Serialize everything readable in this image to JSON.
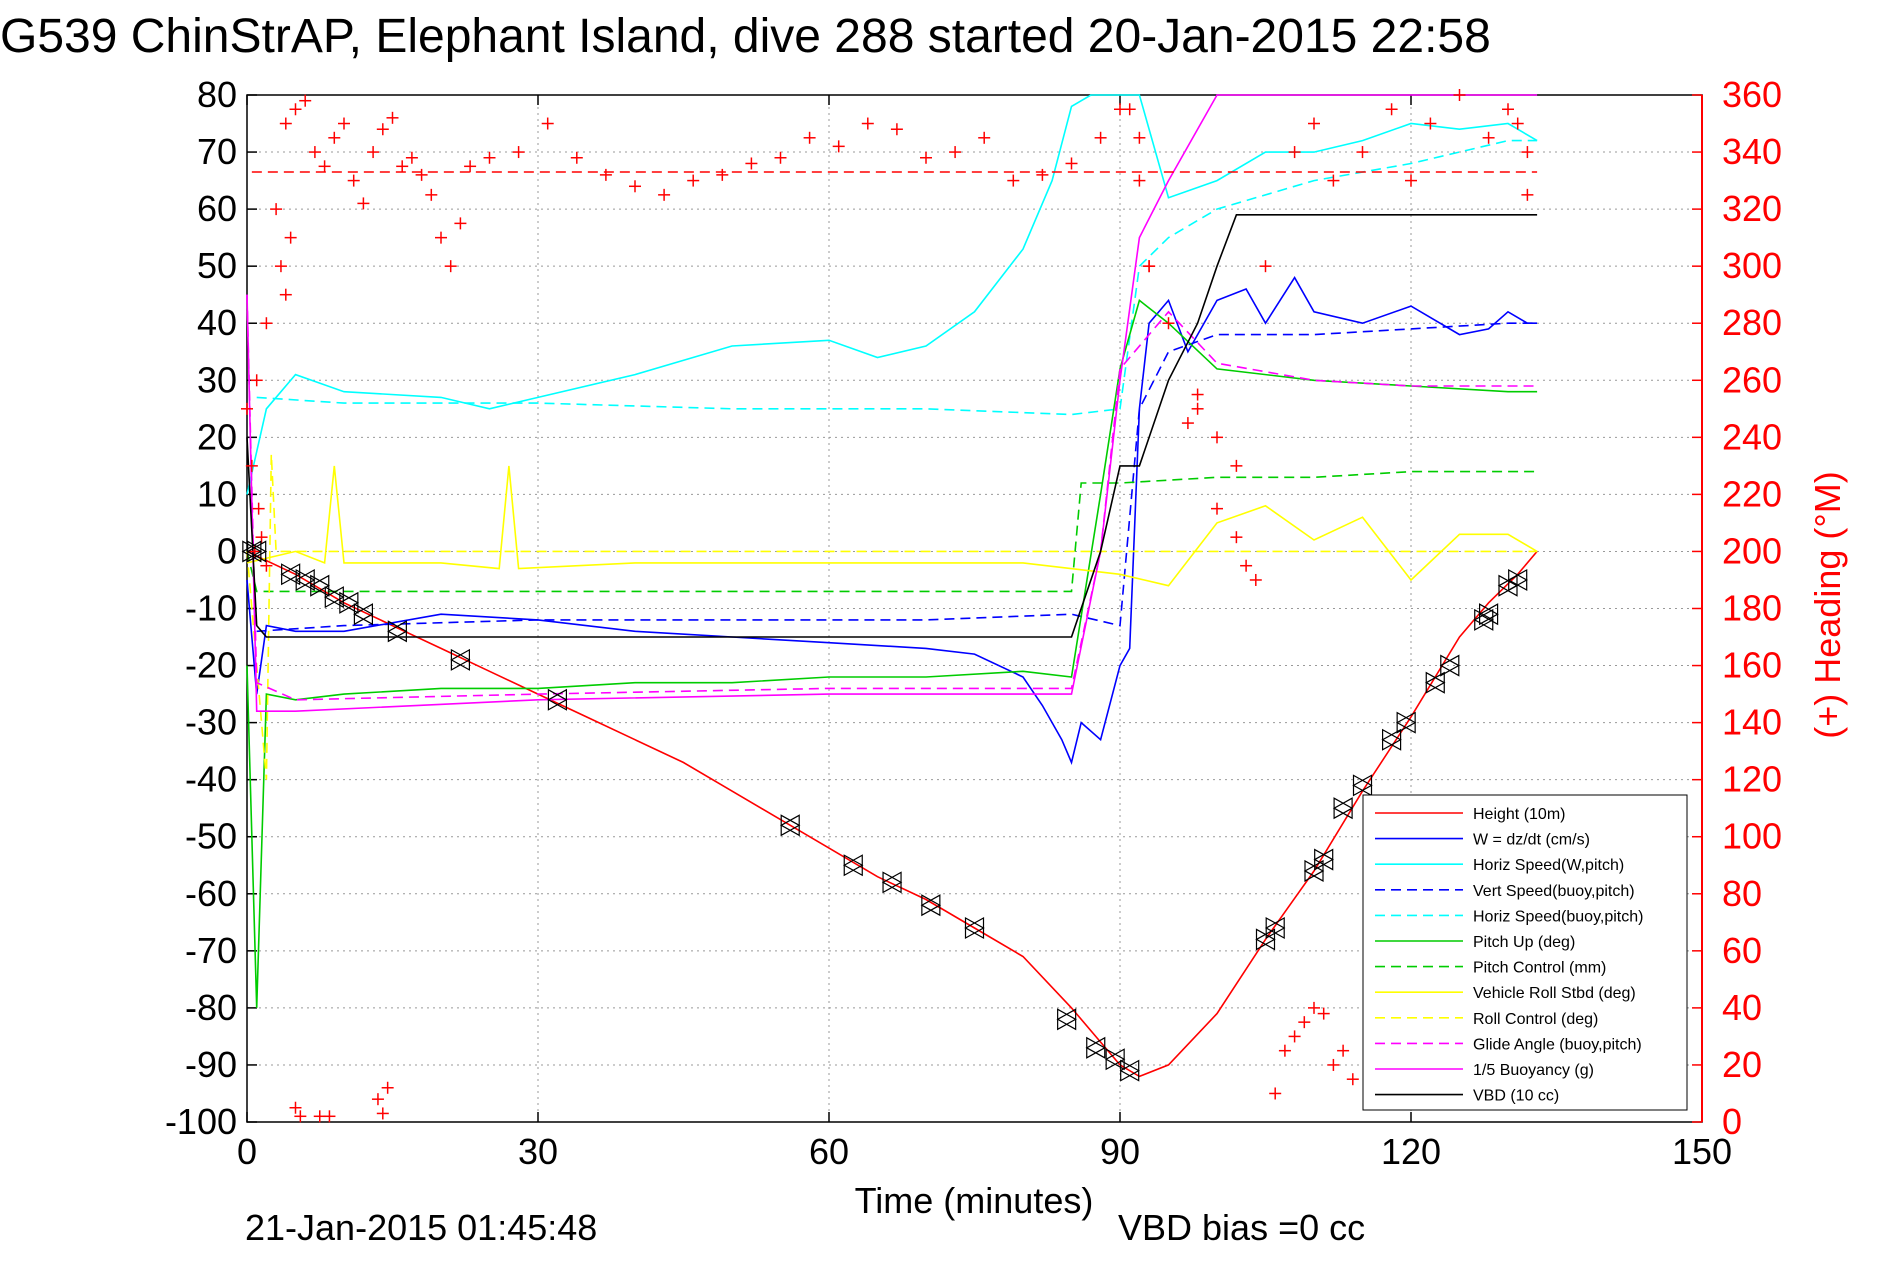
{
  "chart_data": {
    "type": "line",
    "title": "G539 ChinStrAP, Elephant Island, dive 288 started 20-Jan-2015 22:58",
    "xlabel": "Time (minutes)",
    "ylabel": "",
    "y2label": "(+) Heading (°M)",
    "xlim": [
      0,
      150
    ],
    "ylim": [
      -100,
      80
    ],
    "y2lim": [
      0,
      360
    ],
    "xticks": [
      "0",
      "30",
      "60",
      "90",
      "120",
      "150"
    ],
    "yticks": [
      "-100",
      "-90",
      "-80",
      "-70",
      "-60",
      "-50",
      "-40",
      "-30",
      "-20",
      "-10",
      "0",
      "10",
      "20",
      "30",
      "40",
      "50",
      "60",
      "70",
      "80"
    ],
    "y2ticks": [
      "0",
      "20",
      "40",
      "60",
      "80",
      "100",
      "120",
      "140",
      "160",
      "180",
      "200",
      "220",
      "240",
      "260",
      "280",
      "300",
      "320",
      "340",
      "360"
    ],
    "grid": true,
    "legend_position": "bottom-right",
    "footer_left": "21-Jan-2015 01:45:48",
    "footer_right": "VBD bias =0 cc",
    "heading_target_deg": 333,
    "series": [
      {
        "name": "Height (10m)",
        "color": "#ff0000",
        "dash": "solid",
        "x": [
          0,
          5,
          10,
          15,
          20,
          25,
          30,
          35,
          40,
          45,
          50,
          55,
          60,
          65,
          70,
          75,
          80,
          85,
          88,
          90,
          92,
          95,
          100,
          105,
          110,
          115,
          120,
          125,
          128,
          131,
          133
        ],
        "y": [
          0,
          -4,
          -9,
          -13,
          -17,
          -21,
          -25,
          -29,
          -33,
          -37,
          -42,
          -47,
          -52,
          -57,
          -61,
          -66,
          -71,
          -80,
          -86,
          -90,
          -92,
          -90,
          -81,
          -68,
          -56,
          -42,
          -29,
          -15,
          -9,
          -4,
          0
        ]
      },
      {
        "name": "W = dz/dt (cm/s)",
        "color": "#0000ff",
        "dash": "solid",
        "x": [
          0,
          1,
          2,
          5,
          10,
          20,
          30,
          40,
          50,
          60,
          70,
          75,
          80,
          82,
          84,
          85,
          86,
          88,
          90,
          91,
          92,
          93,
          95,
          97,
          100,
          103,
          105,
          108,
          110,
          115,
          120,
          125,
          128,
          130,
          132,
          133
        ],
        "y": [
          -5,
          -25,
          -13,
          -14,
          -14,
          -11,
          -12,
          -14,
          -15,
          -16,
          -17,
          -18,
          -22,
          -27,
          -33,
          -37,
          -30,
          -33,
          -20,
          -17,
          25,
          40,
          44,
          35,
          44,
          46,
          40,
          48,
          42,
          40,
          43,
          38,
          39,
          42,
          40,
          40
        ]
      },
      {
        "name": "Horiz Speed(W,pitch)",
        "color": "#00ffff",
        "dash": "solid",
        "x": [
          0,
          2,
          5,
          10,
          20,
          25,
          30,
          40,
          50,
          60,
          65,
          70,
          75,
          80,
          83,
          85,
          87,
          88,
          89,
          90,
          91,
          92,
          95,
          100,
          105,
          110,
          115,
          120,
          125,
          130,
          133
        ],
        "y": [
          10,
          25,
          31,
          28,
          27,
          25,
          27,
          31,
          36,
          37,
          34,
          36,
          42,
          53,
          65,
          78,
          80,
          80,
          80,
          80,
          80,
          80,
          62,
          65,
          70,
          70,
          72,
          75,
          74,
          75,
          72
        ]
      },
      {
        "name": "Vert Speed(buoy,pitch)",
        "color": "#0000ff",
        "dash": "dashed",
        "x": [
          1,
          10,
          30,
          50,
          70,
          85,
          90,
          92,
          95,
          100,
          110,
          120,
          130,
          133
        ],
        "y": [
          -14,
          -13,
          -12,
          -12,
          -12,
          -11,
          -13,
          25,
          35,
          38,
          38,
          39,
          40,
          40
        ]
      },
      {
        "name": "Horiz Speed(buoy,pitch)",
        "color": "#00ffff",
        "dash": "dashed",
        "x": [
          1,
          10,
          30,
          50,
          70,
          85,
          90,
          92,
          95,
          100,
          110,
          120,
          130,
          133
        ],
        "y": [
          27,
          26,
          26,
          25,
          25,
          24,
          25,
          50,
          55,
          60,
          65,
          68,
          72,
          72
        ]
      },
      {
        "name": "Pitch Up (deg)",
        "color": "#00cc00",
        "dash": "solid",
        "x": [
          0,
          1,
          2,
          5,
          10,
          20,
          30,
          40,
          50,
          60,
          70,
          80,
          85,
          88,
          90,
          92,
          95,
          100,
          110,
          120,
          130,
          133
        ],
        "y": [
          -20,
          -80,
          -25,
          -26,
          -25,
          -24,
          -24,
          -23,
          -23,
          -22,
          -22,
          -21,
          -22,
          10,
          32,
          44,
          40,
          32,
          30,
          29,
          28,
          28
        ]
      },
      {
        "name": "Pitch Control (mm)",
        "color": "#00cc00",
        "dash": "dashed",
        "x": [
          0,
          1,
          5,
          30,
          60,
          85,
          86,
          90,
          100,
          110,
          120,
          133
        ],
        "y": [
          0,
          -7,
          -7,
          -7,
          -7,
          -7,
          12,
          12,
          13,
          13,
          14,
          14
        ]
      },
      {
        "name": "Vehicle Roll Stbd (deg)",
        "color": "#ffff00",
        "dash": "solid",
        "x": [
          0,
          5,
          8,
          9,
          10,
          20,
          26,
          27,
          28,
          40,
          60,
          80,
          90,
          95,
          100,
          105,
          110,
          115,
          120,
          125,
          130,
          133
        ],
        "y": [
          -2,
          0,
          -2,
          15,
          -2,
          -2,
          -3,
          15,
          -3,
          -2,
          -2,
          -2,
          -4,
          -6,
          5,
          8,
          2,
          6,
          -5,
          3,
          3,
          0
        ]
      },
      {
        "name": "Roll Control (deg)",
        "color": "#ffff00",
        "dash": "dashed",
        "x": [
          0,
          2,
          2.5,
          3,
          30,
          60,
          85,
          88,
          90,
          120,
          133
        ],
        "y": [
          0,
          -40,
          17,
          0,
          0,
          0,
          0,
          0,
          0,
          0,
          0
        ]
      },
      {
        "name": "Glide Angle (buoy,pitch)",
        "color": "#ff00ff",
        "dash": "dashed",
        "x": [
          0,
          1,
          5,
          30,
          60,
          85,
          88,
          90,
          95,
          100,
          110,
          120,
          130,
          133
        ],
        "y": [
          45,
          -23,
          -26,
          -25,
          -24,
          -24,
          0,
          32,
          42,
          33,
          30,
          29,
          29,
          29
        ]
      },
      {
        "name": "1/5 Buoyancy (g)",
        "color": "#ff00ff",
        "dash": "solid",
        "x": [
          0,
          1,
          5,
          30,
          60,
          85,
          88,
          90,
          92,
          95,
          100,
          105,
          110,
          120,
          133
        ],
        "y": [
          45,
          -28,
          -28,
          -26,
          -25,
          -25,
          0,
          30,
          55,
          65,
          80,
          80,
          80,
          80,
          80
        ]
      },
      {
        "name": "VBD (10 cc)",
        "color": "#000000",
        "dash": "solid",
        "x": [
          0,
          1,
          2,
          30,
          60,
          85,
          88,
          90,
          92,
          95,
          98,
          100,
          102,
          110,
          120,
          133
        ],
        "y": [
          20,
          -13,
          -15,
          -15,
          -15,
          -15,
          0,
          15,
          15,
          30,
          40,
          50,
          59,
          59,
          59,
          59
        ]
      }
    ],
    "heading": {
      "name": "(+) Heading",
      "color": "#ff0000",
      "x": [
        0,
        1,
        2,
        3,
        4,
        5,
        6,
        7,
        8,
        9,
        10,
        11,
        12,
        13,
        14,
        15,
        16,
        17,
        18,
        19,
        20,
        21,
        22,
        23,
        25,
        28,
        31,
        34,
        37,
        40,
        43,
        46,
        49,
        52,
        55,
        58,
        61,
        64,
        67,
        70,
        73,
        76,
        79,
        82,
        85,
        88,
        90,
        92,
        93,
        95,
        97,
        98,
        100,
        102,
        105,
        108,
        110,
        112,
        115,
        118,
        120,
        122,
        125,
        128,
        130,
        132
      ],
      "y": [
        250,
        260,
        280,
        320,
        350,
        355,
        358,
        340,
        335,
        345,
        350,
        330,
        322,
        340,
        348,
        352,
        335,
        338,
        332,
        325,
        310,
        300,
        315,
        335,
        338,
        340,
        350,
        338,
        332,
        328,
        325,
        330,
        332,
        336,
        338,
        345,
        342,
        350,
        348,
        338,
        340,
        345,
        330,
        332,
        336,
        345,
        355,
        330,
        300,
        280,
        245,
        250,
        240,
        230,
        300,
        340,
        350,
        330,
        340,
        355,
        330,
        350,
        360,
        345,
        355,
        340
      ]
    },
    "heading_scatter": {
      "x": [
        0.5,
        0.8,
        1.2,
        1.5,
        2,
        3.5,
        4,
        4.5,
        5,
        5.5,
        7.5,
        8.5,
        13.5,
        14,
        14.5,
        91,
        92,
        93,
        98,
        100,
        102,
        103,
        104,
        106,
        107,
        108,
        109,
        110,
        111,
        112,
        113,
        114,
        116,
        117,
        118,
        119,
        121,
        122,
        123,
        124,
        126,
        131,
        132
      ],
      "y": [
        230,
        200,
        215,
        205,
        195,
        300,
        290,
        310,
        5,
        2,
        2,
        2,
        8,
        3,
        12,
        355,
        345,
        300,
        255,
        215,
        205,
        195,
        190,
        10,
        25,
        30,
        35,
        40,
        38,
        20,
        25,
        15,
        30,
        22,
        18,
        12,
        20,
        25,
        15,
        10,
        20,
        350,
        325
      ]
    },
    "markers": {
      "x": [
        0.5,
        1,
        4.5,
        6,
        7.5,
        9,
        10.5,
        12,
        15.5,
        22,
        32,
        56,
        62.5,
        66.5,
        70.5,
        75,
        84.5,
        87.5,
        89.5,
        91,
        105,
        106,
        110,
        111,
        113,
        115,
        118,
        119.5,
        122.5,
        124,
        127.5,
        128,
        130,
        131
      ],
      "y": [
        0,
        0,
        -4,
        -5,
        -6,
        -8,
        -9,
        -11,
        -14,
        -19,
        -26,
        -48,
        -55,
        -58,
        -62,
        -66,
        -82,
        -87,
        -89,
        -91,
        -68,
        -66,
        -56,
        -54,
        -45,
        -41,
        -33,
        -30,
        -23,
        -20,
        -12,
        -11,
        -6,
        -5
      ]
    }
  }
}
